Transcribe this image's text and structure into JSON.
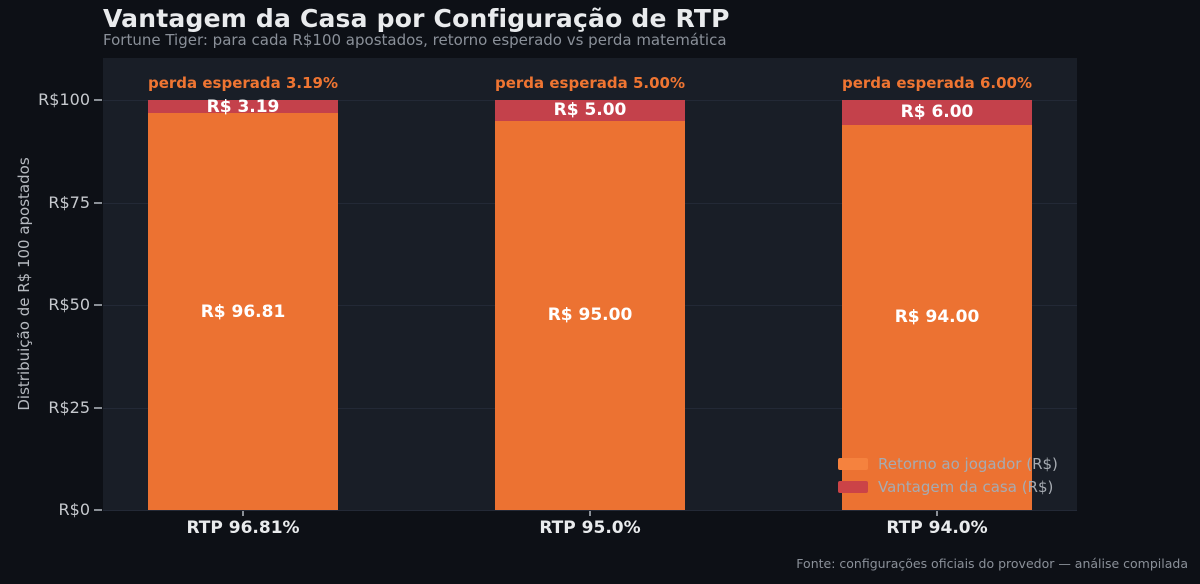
{
  "page": {
    "title": "Vantagem da Casa por Configuração de RTP",
    "subtitle": "Fortune Tiger: para cada R$100 apostados, retorno esperado vs perda matemática",
    "footer": "Fonte: configurações oficiais do provedor — análise compilada"
  },
  "chart_data": {
    "type": "bar",
    "stacked": true,
    "title": "Vantagem da Casa por Configuração de RTP",
    "subtitle": "Fortune Tiger: para cada R$100 apostados, retorno esperado vs perda matemática",
    "xlabel": "",
    "ylabel": "Distribuição de R$ 100 apostados",
    "categories": [
      "RTP 96.81%",
      "RTP 95.0%",
      "RTP 94.0%"
    ],
    "series": [
      {
        "name": "Retorno ao jogador (R$)",
        "values": [
          96.81,
          95.0,
          94.0
        ],
        "value_labels": [
          "R$ 96.81",
          "R$ 95.00",
          "R$ 94.00"
        ]
      },
      {
        "name": "Vantagem da casa (R$)",
        "values": [
          3.19,
          5.0,
          6.0
        ],
        "value_labels": [
          "R$ 3.19",
          "R$ 5.00",
          "R$ 6.00"
        ]
      }
    ],
    "annotations": [
      "perda esperada 3.19%",
      "perda esperada 5.00%",
      "perda esperada 6.00%"
    ],
    "y_ticks": [
      {
        "label": "R$0",
        "value": 0
      },
      {
        "label": "R$25",
        "value": 25
      },
      {
        "label": "R$50",
        "value": 50
      },
      {
        "label": "R$75",
        "value": 75
      },
      {
        "label": "R$100",
        "value": 100
      }
    ],
    "ylim": [
      0,
      110
    ],
    "grid": "horizontal-faint",
    "legend_position": "lower right"
  },
  "colors": {
    "background": "#0d1016",
    "plot_background": "#191e27",
    "grid": "#232936",
    "player_return": "#ec7232",
    "house_edge": "#c4414b",
    "legend_swatch_player": "#f5823e",
    "legend_swatch_house": "#cb4347",
    "annotation_text": "#ef7532",
    "title_text": "#e9ebed",
    "muted_text": "#8a9099",
    "axis_label_text": "#b6bac0",
    "tick_text": "#c6c9ce",
    "tick_mark": "#8b9097",
    "legend_text": "#a6abb2",
    "value_label_text": "#ffffff"
  }
}
